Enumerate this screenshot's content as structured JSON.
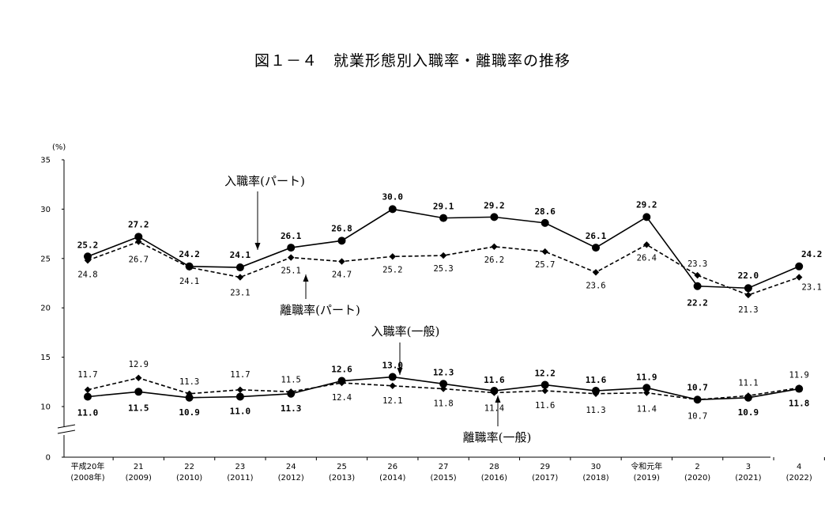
{
  "chart_data": {
    "type": "line",
    "title": "図１－４　就業形態別入職率・離職率の推移",
    "ylabel": "(%)",
    "ylim": [
      0,
      35
    ],
    "yticks": [
      "0",
      "10",
      "15",
      "20",
      "25",
      "30",
      "35"
    ],
    "axis_break": true,
    "categories": [
      {
        "top": "平成20年",
        "bottom": "(2008年)"
      },
      {
        "top": "21",
        "bottom": "(2009)"
      },
      {
        "top": "22",
        "bottom": "(2010)"
      },
      {
        "top": "23",
        "bottom": "(2011)"
      },
      {
        "top": "24",
        "bottom": "(2012)"
      },
      {
        "top": "25",
        "bottom": "(2013)"
      },
      {
        "top": "26",
        "bottom": "(2014)"
      },
      {
        "top": "27",
        "bottom": "(2015)"
      },
      {
        "top": "28",
        "bottom": "(2016)"
      },
      {
        "top": "29",
        "bottom": "(2017)"
      },
      {
        "top": "30",
        "bottom": "(2018)"
      },
      {
        "top": "令和元年",
        "bottom": "(2019)"
      },
      {
        "top": "2",
        "bottom": "(2020)"
      },
      {
        "top": "3",
        "bottom": "(2021)"
      },
      {
        "top": "4",
        "bottom": "(2022)"
      }
    ],
    "series": [
      {
        "name": "入職率(パート)",
        "marker": "circle",
        "line": "solid",
        "values": [
          25.2,
          27.2,
          24.2,
          24.1,
          26.1,
          26.8,
          30.0,
          29.1,
          29.2,
          28.6,
          26.1,
          29.2,
          22.2,
          22.0,
          24.2
        ],
        "labels": [
          "25.2",
          "27.2",
          "24.2",
          "24.1",
          "26.1",
          "26.8",
          "30.0",
          "29.1",
          "29.2",
          "28.6",
          "26.1",
          "29.2",
          "22.2",
          "22.0",
          "24.2"
        ]
      },
      {
        "name": "離職率(パート)",
        "marker": "diamond",
        "line": "dashed",
        "values": [
          24.8,
          26.7,
          24.1,
          23.1,
          25.1,
          24.7,
          25.2,
          25.3,
          26.2,
          25.7,
          23.6,
          26.4,
          23.3,
          21.3,
          23.1
        ],
        "labels": [
          "24.8",
          "26.7",
          "24.1",
          "23.1",
          "25.1",
          "24.7",
          "25.2",
          "25.3",
          "26.2",
          "25.7",
          "23.6",
          "26.4",
          "23.3",
          "21.3",
          "23.1"
        ]
      },
      {
        "name": "入職率(一般)",
        "marker": "circle",
        "line": "solid",
        "values": [
          11.0,
          11.5,
          10.9,
          11.0,
          11.3,
          12.6,
          13.0,
          12.3,
          11.6,
          12.2,
          11.6,
          11.9,
          10.7,
          10.9,
          11.8
        ],
        "labels": [
          "11.0",
          "11.5",
          "10.9",
          "11.0",
          "11.3",
          "12.6",
          "13.0",
          "12.3",
          "11.6",
          "12.2",
          "11.6",
          "11.9",
          "10.7",
          "10.9",
          "11.8"
        ]
      },
      {
        "name": "離職率(一般)",
        "marker": "diamond",
        "line": "dashed",
        "values": [
          11.7,
          12.9,
          11.3,
          11.7,
          11.5,
          12.4,
          12.1,
          11.8,
          11.4,
          11.6,
          11.3,
          11.4,
          10.7,
          11.1,
          11.9
        ],
        "labels": [
          "11.7",
          "12.9",
          "11.3",
          "11.7",
          "11.5",
          "12.4",
          "12.1",
          "11.8",
          "11.4",
          "11.6",
          "11.3",
          "11.4",
          "10.7",
          "11.1",
          "11.9"
        ]
      }
    ],
    "annotations": [
      {
        "text": "入職率(パート)",
        "series": 0
      },
      {
        "text": "離職率(パート)",
        "series": 1
      },
      {
        "text": "入職率(一般)",
        "series": 2
      },
      {
        "text": "離職率(一般)",
        "series": 3
      }
    ]
  }
}
